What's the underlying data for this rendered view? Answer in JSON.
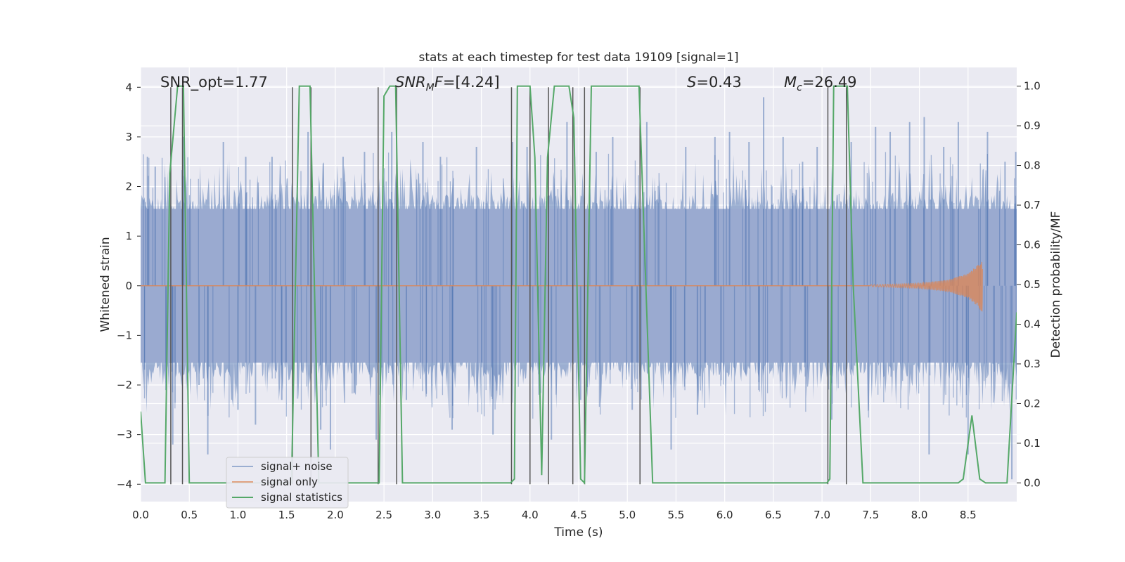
{
  "chart_data": {
    "type": "line",
    "title": "stats at each timestep for test data 19109 [signal=1]",
    "xlabel": "Time (s)",
    "ylabel": "Whitened strain",
    "ylabel_right": "Detection probability/MF",
    "xlim": [
      0.0,
      9.0
    ],
    "ylim": [
      -4.35,
      4.4
    ],
    "ylim_right": [
      -0.047,
      1.047
    ],
    "x_ticks": [
      "0.0",
      "0.5",
      "1.0",
      "1.5",
      "2.0",
      "2.5",
      "3.0",
      "3.5",
      "4.0",
      "4.5",
      "5.0",
      "5.5",
      "6.0",
      "6.5",
      "7.0",
      "7.5",
      "8.0",
      "8.5"
    ],
    "y_ticks_left": [
      "4",
      "3",
      "2",
      "1",
      "0",
      "−1",
      "−2",
      "−3",
      "−4"
    ],
    "y_ticks_right": [
      "1.0",
      "0.9",
      "0.8",
      "0.7",
      "0.6",
      "0.5",
      "0.4",
      "0.3",
      "0.2",
      "0.1",
      "0.0"
    ],
    "grid": true,
    "legend_position": "lower-left",
    "annotations": {
      "snr_opt": "SNR_opt=1.77",
      "snr_mf": "SNR_MF=[4.24]",
      "s": "S=0.43",
      "mc": "M_c=26.49"
    },
    "series": [
      {
        "name": "signal+ noise",
        "color": "#4c72b0",
        "description_values": "noise between about -3.5 and 3.9, core band about -1.6 to 1.6",
        "envelope": [
          [
            0.0,
            -1.6,
            1.6
          ],
          [
            0.5,
            -1.6,
            1.6
          ],
          [
            1.0,
            -1.6,
            1.6
          ],
          [
            1.5,
            -1.6,
            1.6
          ],
          [
            2.0,
            -1.6,
            1.6
          ],
          [
            2.5,
            -1.6,
            1.6
          ],
          [
            3.0,
            -1.6,
            1.6
          ],
          [
            3.5,
            -1.6,
            1.6
          ],
          [
            4.0,
            -1.6,
            1.6
          ],
          [
            4.5,
            -1.6,
            1.6
          ],
          [
            5.0,
            -1.6,
            1.6
          ],
          [
            5.5,
            -1.6,
            1.6
          ],
          [
            6.0,
            -1.6,
            1.6
          ],
          [
            6.5,
            -1.6,
            1.6
          ],
          [
            7.0,
            -1.6,
            1.6
          ],
          [
            7.5,
            -1.6,
            1.6
          ],
          [
            8.0,
            -1.6,
            1.6
          ],
          [
            8.5,
            -1.6,
            1.6
          ],
          [
            9.0,
            -1.6,
            1.6
          ]
        ],
        "peaks": [
          [
            0.07,
            2.6
          ],
          [
            0.15,
            2.4
          ],
          [
            0.26,
            -2.1
          ],
          [
            0.33,
            -3.2
          ],
          [
            0.44,
            3.0
          ],
          [
            0.6,
            -2.0
          ],
          [
            0.69,
            -3.4
          ],
          [
            0.85,
            2.9
          ],
          [
            1.0,
            -2.5
          ],
          [
            1.08,
            2.6
          ],
          [
            1.18,
            -2.8
          ],
          [
            1.35,
            2.6
          ],
          [
            1.45,
            -2.3
          ],
          [
            1.72,
            3.1
          ],
          [
            1.85,
            -2.9
          ],
          [
            1.95,
            -3.3
          ],
          [
            2.08,
            2.6
          ],
          [
            2.3,
            2.7
          ],
          [
            2.42,
            -3.1
          ],
          [
            2.58,
            3.1
          ],
          [
            2.73,
            -2.3
          ],
          [
            2.9,
            2.9
          ],
          [
            3.08,
            2.6
          ],
          [
            3.2,
            -2.9
          ],
          [
            3.45,
            2.8
          ],
          [
            3.62,
            -3.0
          ],
          [
            3.82,
            2.9
          ],
          [
            3.97,
            2.8
          ],
          [
            4.22,
            -3.1
          ],
          [
            4.38,
            3.3
          ],
          [
            4.52,
            -2.3
          ],
          [
            4.68,
            2.7
          ],
          [
            4.85,
            3.0
          ],
          [
            5.05,
            -2.5
          ],
          [
            5.2,
            3.3
          ],
          [
            5.45,
            -3.3
          ],
          [
            5.6,
            2.8
          ],
          [
            5.72,
            -2.6
          ],
          [
            5.9,
            3.0
          ],
          [
            6.05,
            3.1
          ],
          [
            6.25,
            2.9
          ],
          [
            6.4,
            3.8
          ],
          [
            6.6,
            3.0
          ],
          [
            6.8,
            2.5
          ],
          [
            6.95,
            2.8
          ],
          [
            7.1,
            -2.7
          ],
          [
            7.3,
            2.9
          ],
          [
            7.55,
            3.2
          ],
          [
            7.7,
            3.1
          ],
          [
            7.9,
            3.3
          ],
          [
            8.05,
            3.4
          ],
          [
            8.1,
            -3.4
          ],
          [
            8.25,
            2.8
          ],
          [
            8.4,
            3.3
          ],
          [
            8.5,
            -3.4
          ],
          [
            8.7,
            3.1
          ],
          [
            8.88,
            2.5
          ],
          [
            8.95,
            -3.9
          ],
          [
            8.99,
            2.7
          ]
        ]
      },
      {
        "name": "signal only",
        "color": "#dd8452",
        "x": [
          0.0,
          7.5,
          8.0,
          8.3,
          8.5,
          8.6,
          8.65
        ],
        "amplitude": [
          0.0,
          0.02,
          0.05,
          0.12,
          0.25,
          0.42,
          0.55
        ]
      },
      {
        "name": "signal statistics",
        "color": "#55a868",
        "x": [
          0.0,
          0.05,
          0.25,
          0.3,
          0.38,
          0.44,
          0.5,
          0.55,
          1.55,
          1.63,
          1.74,
          1.83,
          2.45,
          2.5,
          2.56,
          2.62,
          2.69,
          3.8,
          3.84,
          3.87,
          4.0,
          4.05,
          4.12,
          4.18,
          4.25,
          4.4,
          4.45,
          4.52,
          4.56,
          4.63,
          5.12,
          5.26,
          7.05,
          7.08,
          7.12,
          7.26,
          7.32,
          7.42,
          8.4,
          8.45,
          8.54,
          8.62,
          8.68,
          8.9,
          9.0
        ],
        "y": [
          0.18,
          0.0,
          0.0,
          0.78,
          1.0,
          1.0,
          0.0,
          0.0,
          0.0,
          1.0,
          1.0,
          0.0,
          0.0,
          0.975,
          1.0,
          1.0,
          0.0,
          0.0,
          0.01,
          1.0,
          1.0,
          0.82,
          0.02,
          0.82,
          1.0,
          1.0,
          0.92,
          0.01,
          0.0,
          1.0,
          1.0,
          0.0,
          0.0,
          0.01,
          1.0,
          1.0,
          0.5,
          0.0,
          0.0,
          0.01,
          0.17,
          0.01,
          0.0,
          0.0,
          0.43
        ]
      }
    ],
    "vertical_lines_x": [
      0.31,
      0.43,
      1.56,
      1.75,
      2.44,
      2.63,
      3.81,
      4.0,
      4.19,
      4.44,
      4.56,
      5.13,
      7.06,
      7.25
    ]
  }
}
